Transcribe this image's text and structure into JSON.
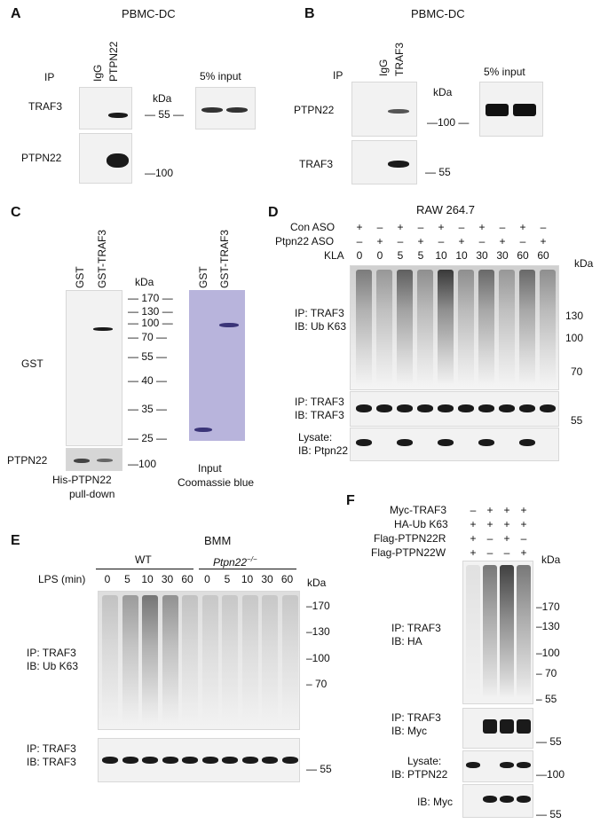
{
  "panelA": {
    "letter": "A",
    "title": "PBMC-DC",
    "ip": "IP",
    "lanes": [
      "IgG",
      "PTPN22"
    ],
    "rows": [
      "TRAF3",
      "PTPN22"
    ],
    "kda": "kDa",
    "marker55": "— 55 —",
    "marker100": "—100",
    "input": "5% input"
  },
  "panelB": {
    "letter": "B",
    "title": "PBMC-DC",
    "ip": "IP",
    "lanes": [
      "IgG",
      "TRAF3"
    ],
    "rows": [
      "PTPN22",
      "TRAF3"
    ],
    "kda": "kDa",
    "marker100": "—100 —",
    "marker55": "— 55",
    "input": "5% input"
  },
  "panelC": {
    "letter": "C",
    "lanes": [
      "GST",
      "GST-TRAF3"
    ],
    "input_lanes": [
      "GST",
      "GST-TRAF3"
    ],
    "kda": "kDa",
    "markers": [
      "— 170 —",
      "— 130 —",
      "— 100 —",
      "— 70 —",
      "— 55 —",
      "— 40 —",
      "— 35 —",
      "— 25 —"
    ],
    "marker_bottom": "—100",
    "row_gst": "GST",
    "row_ptpn22": "PTPN22",
    "caption_left1": "His-PTPN22",
    "caption_left2": "pull-down",
    "caption_right1": "Input",
    "caption_right2": "Coomassie blue",
    "gel_color": "#b8b4dc",
    "gel_band_color": "#3a3478"
  },
  "panelD": {
    "letter": "D",
    "title": "RAW 264.7",
    "row_labels": [
      "Con ASO",
      "Ptpn22 ASO",
      "KLA"
    ],
    "con_aso": [
      "+",
      "–",
      "+",
      "–",
      "+",
      "–",
      "+",
      "–",
      "+",
      "–"
    ],
    "ptpn22_aso": [
      "–",
      "+",
      "–",
      "+",
      "–",
      "+",
      "–",
      "+",
      "–",
      "+"
    ],
    "kla": [
      "0",
      "0",
      "5",
      "5",
      "10",
      "10",
      "30",
      "30",
      "60",
      "60"
    ],
    "kda": "kDa",
    "blot1_label": [
      "IP: TRAF3",
      "IB: Ub K63"
    ],
    "blot1_markers": [
      "130",
      "100",
      "70"
    ],
    "blot2_label": [
      "IP: TRAF3",
      "IB: TRAF3"
    ],
    "blot2_marker": "55",
    "blot3_label": [
      "Lysate:",
      "IB: Ptpn22"
    ]
  },
  "panelE": {
    "letter": "E",
    "title": "BMM",
    "group_wt": "WT",
    "group_ko": "Ptpn22",
    "group_ko_sup": "−/−",
    "lps_label": "LPS (min)",
    "times_wt": [
      "0",
      "5",
      "10",
      "30",
      "60"
    ],
    "times_ko": [
      "0",
      "5",
      "10",
      "30",
      "60"
    ],
    "kda": "kDa",
    "blot1_label": [
      "IP: TRAF3",
      "IB: Ub K63"
    ],
    "blot1_markers": [
      "–170",
      "–130",
      "–100",
      "– 70"
    ],
    "blot2_label": [
      "IP: TRAF3",
      "IB: TRAF3"
    ],
    "blot2_marker": "— 55"
  },
  "panelF": {
    "letter": "F",
    "row_labels": [
      "Myc-TRAF3",
      "HA-Ub K63",
      "Flag-PTPN22R",
      "Flag-PTPN22W"
    ],
    "myc_traf3": [
      "–",
      "+",
      "+",
      "+"
    ],
    "ha_ub": [
      "+",
      "+",
      "+",
      "+"
    ],
    "flag_r": [
      "+",
      "–",
      "+",
      "–"
    ],
    "flag_w": [
      "+",
      "–",
      "–",
      "+"
    ],
    "kda": "kDa",
    "blot1_label": [
      "IP: TRAF3",
      "IB: HA"
    ],
    "blot1_markers": [
      "–170",
      "–130",
      "–100",
      "– 70",
      "– 55"
    ],
    "blot2_label": [
      "IP: TRAF3",
      "IB: Myc"
    ],
    "blot2_marker": "— 55",
    "blot3_label": [
      "Lysate:",
      "IB: PTPN22"
    ],
    "blot3_marker": "—100",
    "blot4_label": "IB: Myc",
    "blot4_marker": "— 55"
  }
}
